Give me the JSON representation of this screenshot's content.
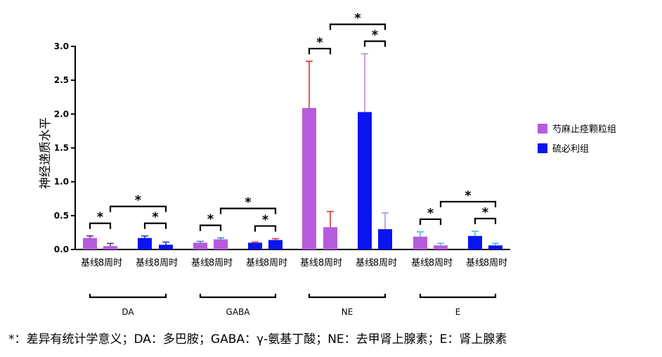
{
  "chart_data": {
    "type": "bar",
    "ylabel": "神经递质水平",
    "ylim": [
      0,
      3.0
    ],
    "yticks": [
      0.0,
      0.5,
      1.0,
      1.5,
      2.0,
      2.5,
      3.0
    ],
    "ytick_labels": [
      "0.0",
      "0.5",
      "1.0",
      "1.5",
      "2.0",
      "2.5",
      "3.0"
    ],
    "colors": {
      "芍麻止痉颗粒组": "#b65bdc",
      "硫必利组": "#0a14f0"
    },
    "legend_position": "right",
    "series": [
      {
        "name": "芍麻止痉颗粒组",
        "color": "#b65bdc"
      },
      {
        "name": "硫必利组",
        "color": "#0a14f0"
      }
    ],
    "groups": [
      {
        "name": "DA",
        "bars": [
          {
            "label": "基线",
            "series": "芍麻止痉颗粒组",
            "value": 0.17,
            "error": 0.03,
            "error_color": "#6a2a80"
          },
          {
            "label": "8周时",
            "series": "芍麻止痉颗粒组",
            "value": 0.05,
            "error": 0.04,
            "error_color": "#6a2a80"
          },
          {
            "label": "基线",
            "series": "硫必利组",
            "value": 0.17,
            "error": 0.03,
            "error_color": "#2a3ad0"
          },
          {
            "label": "8周时",
            "series": "硫必利组",
            "value": 0.07,
            "error": 0.04,
            "error_color": "#2a3ad0"
          }
        ],
        "significance": [
          {
            "from": 0,
            "to": 1,
            "label": "*"
          },
          {
            "from": 2,
            "to": 3,
            "label": "*"
          },
          {
            "from": 1,
            "to": 3,
            "label": "*"
          }
        ]
      },
      {
        "name": "GABA",
        "bars": [
          {
            "label": "基线",
            "series": "芍麻止痉颗粒组",
            "value": 0.1,
            "error": 0.02,
            "error_color": "#3a8fb5"
          },
          {
            "label": "8周时",
            "series": "芍麻止痉颗粒组",
            "value": 0.15,
            "error": 0.02,
            "error_color": "#3a8fb5"
          },
          {
            "label": "基线",
            "series": "硫必利组",
            "value": 0.1,
            "error": 0.01,
            "error_color": "#e04040"
          },
          {
            "label": "8周时",
            "series": "硫必利组",
            "value": 0.14,
            "error": 0.02,
            "error_color": "#e04040"
          }
        ],
        "significance": [
          {
            "from": 0,
            "to": 1,
            "label": "*"
          },
          {
            "from": 2,
            "to": 3,
            "label": "*"
          },
          {
            "from": 1,
            "to": 3,
            "label": "*"
          }
        ]
      },
      {
        "name": "NE",
        "bars": [
          {
            "label": "基线",
            "series": "芍麻止痉颗粒组",
            "value": 2.09,
            "error": 0.69,
            "error_color": "#e03030"
          },
          {
            "label": "8周时",
            "series": "芍麻止痉颗粒组",
            "value": 0.33,
            "error": 0.23,
            "error_color": "#e03030"
          },
          {
            "label": "基线",
            "series": "硫必利组",
            "value": 2.03,
            "error": 0.86,
            "error_color": "#b08ce0"
          },
          {
            "label": "8周时",
            "series": "硫必利组",
            "value": 0.3,
            "error": 0.24,
            "error_color": "#b08ce0"
          }
        ],
        "significance": [
          {
            "from": 0,
            "to": 1,
            "label": "*"
          },
          {
            "from": 2,
            "to": 3,
            "label": "*"
          },
          {
            "from": 1,
            "to": 3,
            "label": "*"
          }
        ]
      },
      {
        "name": "E",
        "bars": [
          {
            "label": "基线",
            "series": "芍麻止痉颗粒组",
            "value": 0.19,
            "error": 0.07,
            "error_color": "#40c0e0"
          },
          {
            "label": "8周时",
            "series": "芍麻止痉颗粒组",
            "value": 0.06,
            "error": 0.03,
            "error_color": "#40c0e0"
          },
          {
            "label": "基线",
            "series": "硫必利组",
            "value": 0.2,
            "error": 0.07,
            "error_color": "#40c0e0"
          },
          {
            "label": "8周时",
            "series": "硫必利组",
            "value": 0.06,
            "error": 0.03,
            "error_color": "#40c0e0"
          }
        ],
        "significance": [
          {
            "from": 0,
            "to": 1,
            "label": "*"
          },
          {
            "from": 2,
            "to": 3,
            "label": "*"
          },
          {
            "from": 1,
            "to": 3,
            "label": "*"
          }
        ]
      }
    ]
  },
  "footnote": "*：差异有统计学意义；DA：多巴胺；GABA：γ-氨基丁酸；NE：去甲肾上腺素；E：肾上腺素"
}
